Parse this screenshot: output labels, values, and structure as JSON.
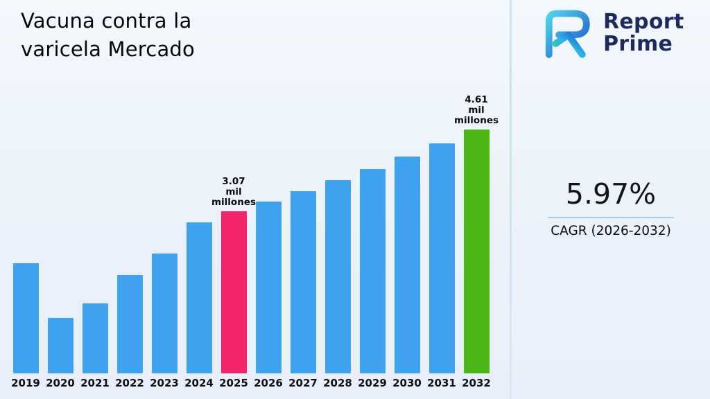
{
  "title": {
    "line1": "Vacuna contra la",
    "line2": "varicela Mercado"
  },
  "brand": {
    "line1": "Report",
    "line2": "Prime"
  },
  "cagr": {
    "value": "5.97%",
    "label": "CAGR (2026-2032)"
  },
  "chart_data": {
    "type": "bar",
    "title": "Vacuna contra la varicela Mercado",
    "categories": [
      "2019",
      "2020",
      "2021",
      "2022",
      "2023",
      "2024",
      "2025",
      "2026",
      "2027",
      "2028",
      "2029",
      "2030",
      "2031",
      "2032"
    ],
    "values": [
      2.08,
      1.05,
      1.32,
      1.86,
      2.26,
      2.85,
      3.07,
      3.25,
      3.45,
      3.65,
      3.87,
      4.1,
      4.35,
      4.61
    ],
    "unit_label": "mil millones",
    "annotations": [
      {
        "category": "2025",
        "lines": [
          "3.07",
          "mil",
          "millones"
        ]
      },
      {
        "category": "2032",
        "lines": [
          "4.61",
          "mil",
          "millones"
        ]
      }
    ],
    "bar_colors": {
      "default": "#3FA2EE",
      "2025": "#F4256B",
      "2032": "#4BB616"
    },
    "xlabel": "",
    "ylabel": "",
    "ylim": [
      0,
      5
    ],
    "grid": false,
    "legend": false
  },
  "colors": {
    "background": "#EDF2FA",
    "bar_default": "#3FA2EE",
    "bar_highlight_pink": "#F4256B",
    "bar_highlight_green": "#4BB616",
    "brand_navy": "#1E2A5E",
    "divider_blue": "#CFE2F6",
    "cagr_underline": "#A9CDEC"
  }
}
